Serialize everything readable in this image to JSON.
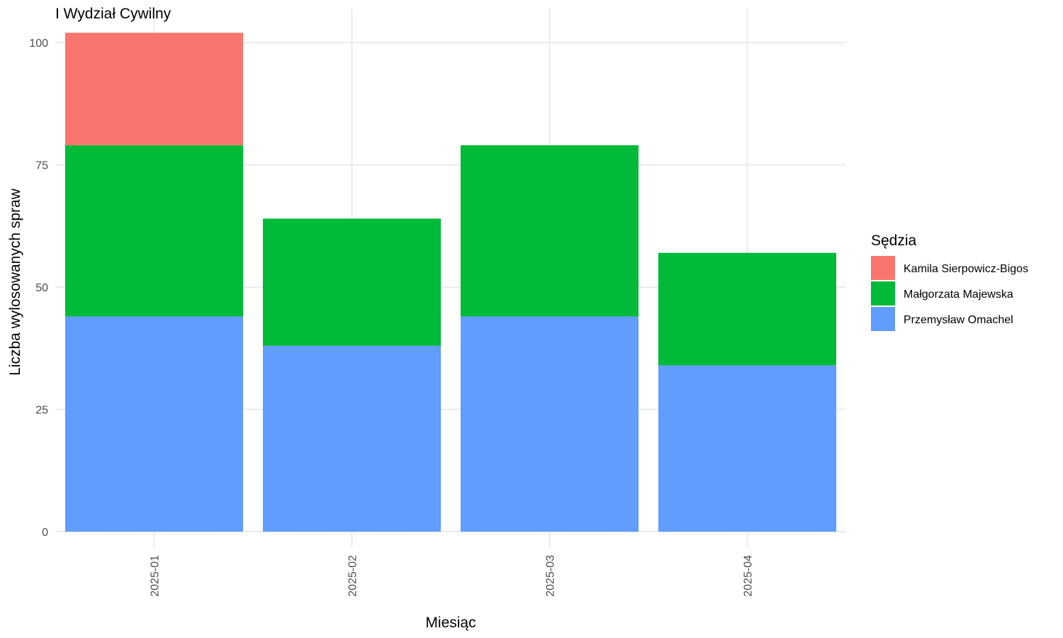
{
  "chart_data": {
    "type": "bar",
    "stacked": true,
    "title": "I Wydział Cywilny",
    "xlabel": "Miesiąc",
    "ylabel": "Liczba wylosowanych spraw",
    "categories": [
      "2025-01",
      "2025-02",
      "2025-03",
      "2025-04"
    ],
    "ylim": [
      0,
      102
    ],
    "yticks": [
      0,
      25,
      50,
      75,
      100
    ],
    "grid": true,
    "legend": {
      "title": "Sędzia",
      "placement": "right"
    },
    "series": [
      {
        "name": "Przemysław Omachel",
        "color": "#619cff",
        "values": [
          44,
          38,
          44,
          34
        ]
      },
      {
        "name": "Małgorzata Majewska",
        "color": "#00ba38",
        "values": [
          35,
          26,
          35,
          23
        ]
      },
      {
        "name": "Kamila Sierpowicz-Bigos",
        "color": "#f8766d",
        "values": [
          23,
          0,
          0,
          0
        ]
      }
    ]
  }
}
